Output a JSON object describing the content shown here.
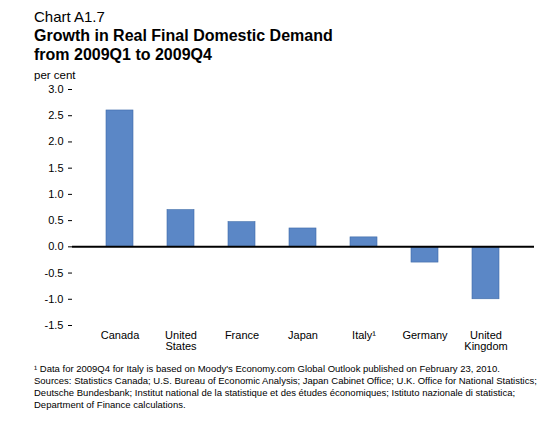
{
  "chart_data": {
    "type": "bar",
    "subtitle": "Chart A1.7",
    "title": "Growth in Real Final Domestic Demand from 2009Q1 to 2009Q4",
    "ylabel": "per cent",
    "categories": [
      "Canada",
      "United States",
      "France",
      "Japan",
      "Italy¹",
      "Germany",
      "United Kingdom"
    ],
    "values": [
      2.6,
      0.7,
      0.47,
      0.35,
      0.18,
      -0.3,
      -1.0
    ],
    "color": "#5b87c6",
    "ylim": [
      -1.5,
      3.0
    ],
    "yticks": [
      -1.5,
      {
        "value": -1.0,
        "label": "-1.0"
      },
      -0.5,
      {
        "value": 0,
        "label": "0.0"
      },
      0.5,
      {
        "value": 1.0,
        "label": "1.0"
      },
      1.5,
      {
        "value": 2.0,
        "label": "2.0"
      },
      2.5,
      {
        "value": 3.0,
        "label": "3.0"
      }
    ],
    "grid": false,
    "notes": [
      "¹ Data for 2009Q4 for Italy is based on Moody's Economy.com Global Outlook published on February 23, 2010.",
      "Sources: Statistics Canada; U.S. Bureau of Economic Analysis; Japan Cabinet Office; U.K. Office for National Statistics; Deutsche Bundesbank; Institut national de la statistique et des études économiques; Istituto nazionale di statistica; Department of Finance calculations."
    ]
  }
}
